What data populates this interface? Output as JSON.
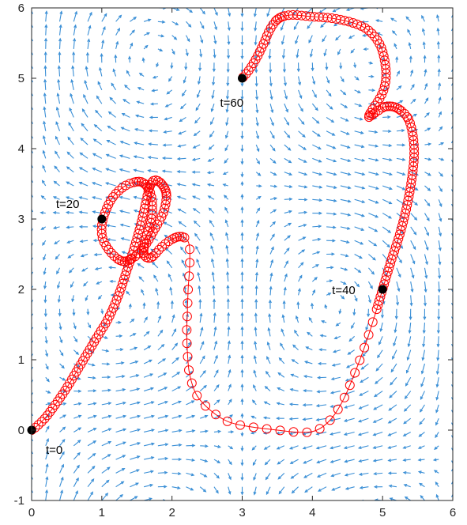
{
  "chart_data": {
    "type": "quiver+line",
    "title": "",
    "xlabel": "",
    "ylabel": "",
    "xlim": [
      0,
      6
    ],
    "ylim": [
      -1,
      6
    ],
    "grid": false,
    "x_ticks": [
      "0",
      "1",
      "2",
      "3",
      "4",
      "5",
      "6"
    ],
    "y_ticks": [
      "-1",
      "0",
      "1",
      "2",
      "3",
      "4",
      "5",
      "6"
    ],
    "colors": {
      "arrows": "#3a8fd6",
      "trajectory": "#ff0000",
      "markers": "#000000",
      "axes": "#262626"
    },
    "vector_field": {
      "grid_x": [
        0,
        6,
        30
      ],
      "grid_y": [
        -1,
        6,
        36
      ]
    },
    "trajectory": {
      "marker": "open-circle",
      "path": [
        [
          0.0,
          0.0
        ],
        [
          0.08,
          0.06
        ],
        [
          0.2,
          0.18
        ],
        [
          0.35,
          0.38
        ],
        [
          0.5,
          0.6
        ],
        [
          0.65,
          0.85
        ],
        [
          0.8,
          1.1
        ],
        [
          0.95,
          1.35
        ],
        [
          1.1,
          1.6
        ],
        [
          1.25,
          1.95
        ],
        [
          1.35,
          2.25
        ],
        [
          1.45,
          2.55
        ],
        [
          1.55,
          2.9
        ],
        [
          1.62,
          3.2
        ],
        [
          1.68,
          3.45
        ],
        [
          1.75,
          3.55
        ],
        [
          1.85,
          3.5
        ],
        [
          1.92,
          3.35
        ],
        [
          1.88,
          3.1
        ],
        [
          1.75,
          2.85
        ],
        [
          1.6,
          2.6
        ],
        [
          1.45,
          2.45
        ],
        [
          1.3,
          2.4
        ],
        [
          1.15,
          2.5
        ],
        [
          1.02,
          2.7
        ],
        [
          1.0,
          2.9
        ],
        [
          1.05,
          3.1
        ],
        [
          1.15,
          3.3
        ],
        [
          1.3,
          3.45
        ],
        [
          1.45,
          3.52
        ],
        [
          1.58,
          3.52
        ],
        [
          1.68,
          3.4
        ],
        [
          1.72,
          3.2
        ],
        [
          1.7,
          2.95
        ],
        [
          1.62,
          2.7
        ],
        [
          1.6,
          2.5
        ],
        [
          1.7,
          2.45
        ],
        [
          1.85,
          2.6
        ],
        [
          1.98,
          2.7
        ],
        [
          2.1,
          2.75
        ],
        [
          2.2,
          2.72
        ],
        [
          2.25,
          2.6
        ],
        [
          2.25,
          2.3
        ],
        [
          2.23,
          2.0
        ],
        [
          2.22,
          1.7
        ],
        [
          2.21,
          1.4
        ],
        [
          2.22,
          1.1
        ],
        [
          2.25,
          0.8
        ],
        [
          2.35,
          0.5
        ],
        [
          2.55,
          0.28
        ],
        [
          2.8,
          0.12
        ],
        [
          3.1,
          0.05
        ],
        [
          3.5,
          0.0
        ],
        [
          3.8,
          -0.03
        ],
        [
          4.0,
          -0.02
        ],
        [
          4.15,
          0.05
        ],
        [
          4.3,
          0.2
        ],
        [
          4.45,
          0.45
        ],
        [
          4.6,
          0.8
        ],
        [
          4.75,
          1.2
        ],
        [
          4.88,
          1.6
        ],
        [
          5.0,
          2.0
        ],
        [
          5.12,
          2.4
        ],
        [
          5.25,
          2.8
        ],
        [
          5.35,
          3.2
        ],
        [
          5.42,
          3.6
        ],
        [
          5.45,
          3.95
        ],
        [
          5.42,
          4.25
        ],
        [
          5.35,
          4.45
        ],
        [
          5.2,
          4.58
        ],
        [
          5.05,
          4.6
        ],
        [
          4.95,
          4.55
        ],
        [
          4.85,
          4.48
        ],
        [
          4.8,
          4.45
        ],
        [
          4.85,
          4.55
        ],
        [
          4.95,
          4.7
        ],
        [
          5.02,
          4.85
        ],
        [
          5.05,
          5.05
        ],
        [
          5.02,
          5.3
        ],
        [
          4.95,
          5.5
        ],
        [
          4.8,
          5.68
        ],
        [
          4.6,
          5.78
        ],
        [
          4.3,
          5.85
        ],
        [
          3.95,
          5.88
        ],
        [
          3.7,
          5.9
        ],
        [
          3.52,
          5.85
        ],
        [
          3.4,
          5.7
        ],
        [
          3.3,
          5.48
        ],
        [
          3.2,
          5.28
        ],
        [
          3.1,
          5.12
        ],
        [
          3.0,
          5.0
        ]
      ]
    },
    "time_markers": [
      {
        "label": "t=0",
        "x": 0,
        "y": 0
      },
      {
        "label": "t=20",
        "x": 1,
        "y": 3
      },
      {
        "label": "t=40",
        "x": 5,
        "y": 2
      },
      {
        "label": "t=60",
        "x": 3,
        "y": 5
      }
    ]
  }
}
